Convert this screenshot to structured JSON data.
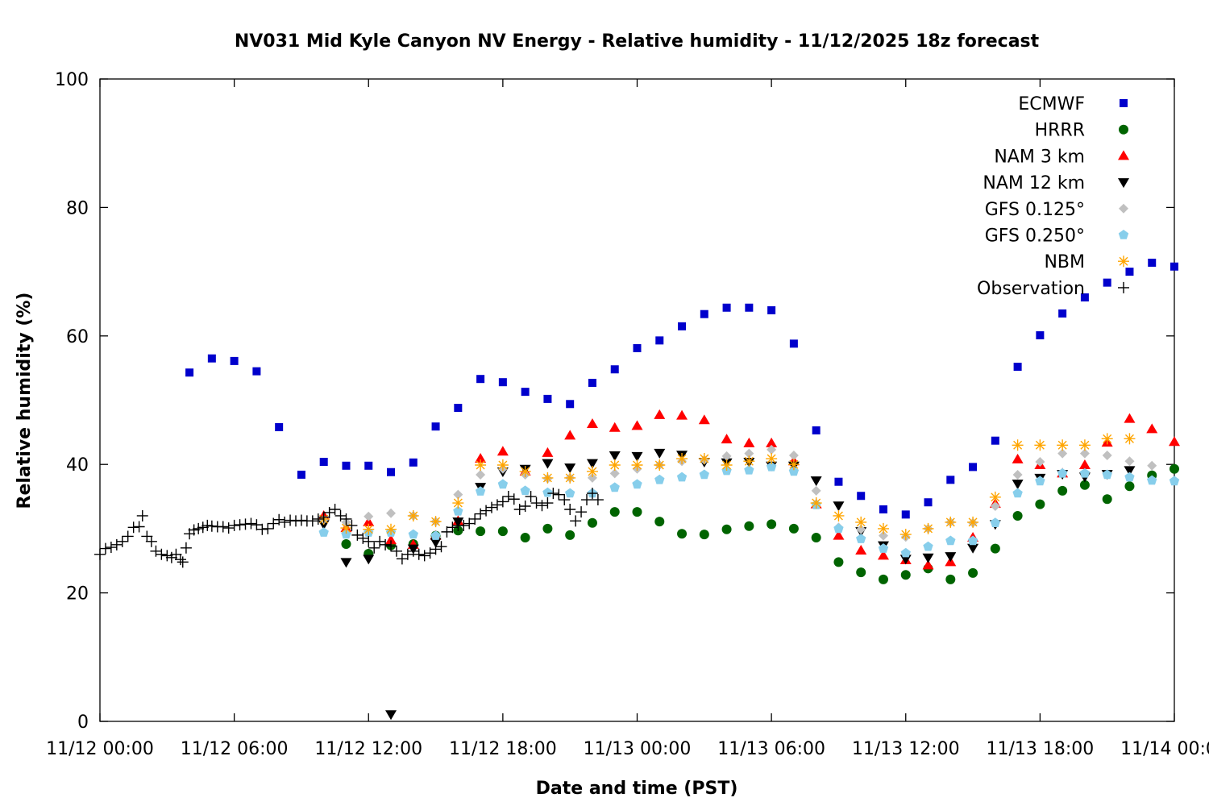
{
  "chart_data": {
    "type": "scatter",
    "title": "NV031 Mid Kyle Canyon NV Energy - Relative humidity - 11/12/2025 18z forecast",
    "xlabel": "Date and time (PST)",
    "ylabel": "Relative humidity (%)",
    "x_unit": "hours after 11/12 00:00 PST",
    "xlim": [
      0,
      48
    ],
    "ylim": [
      0,
      100
    ],
    "x_tick_labels": [
      "11/12 00:00",
      "11/12 06:00",
      "11/12 12:00",
      "11/12 18:00",
      "11/13 00:00",
      "11/13 06:00",
      "11/13 12:00",
      "11/13 18:00",
      "11/14 00:00"
    ],
    "y_tick_labels": [
      "0",
      "20",
      "40",
      "60",
      "80",
      "100"
    ],
    "grid": false,
    "legend_position": "top-right",
    "series": [
      {
        "name": "ECMWF",
        "marker": "square",
        "color": "#0000cc",
        "start_hour": 4,
        "values": [
          54.3,
          56.5,
          56.1,
          54.5,
          45.8,
          38.4,
          40.4,
          39.8,
          39.8,
          38.8,
          40.3,
          45.9,
          48.8,
          53.3,
          52.8,
          51.3,
          50.2,
          49.4,
          52.7,
          54.8,
          58.1,
          59.3,
          61.5,
          63.4,
          64.4,
          64.4,
          64.0,
          58.8,
          45.3,
          37.3,
          35.1,
          33.0,
          32.2,
          34.1,
          37.6,
          39.6,
          43.7,
          55.2,
          60.1,
          63.5,
          66.0,
          68.3,
          70.0,
          71.4,
          70.8
        ]
      },
      {
        "name": "HRRR",
        "marker": "circle",
        "color": "#006400",
        "start_hour": 11,
        "values": [
          27.6,
          26.1,
          27.4,
          27.6,
          28.9,
          29.7,
          29.6,
          29.6,
          28.6,
          30.0,
          29.0,
          30.9,
          32.6,
          32.6,
          31.1,
          29.2,
          29.1,
          29.9,
          30.4,
          30.7,
          30.0,
          28.6,
          24.8,
          23.2,
          22.1,
          22.8,
          23.8,
          22.1,
          23.1,
          26.9,
          32.0,
          33.8,
          35.9,
          36.8,
          34.6,
          36.6,
          38.3,
          39.3
        ]
      },
      {
        "name": "NAM 3 km",
        "marker": "triangle-up",
        "color": "#ff0000",
        "start_hour": 10,
        "values": [
          32.0,
          30.1,
          31.0,
          28.2,
          27.5,
          28.9,
          31.2,
          40.9,
          42.0,
          38.9,
          41.8,
          44.5,
          46.3,
          45.7,
          46.0,
          47.7,
          47.6,
          46.9,
          43.9,
          43.3,
          43.3,
          40.5,
          33.8,
          28.9,
          26.6,
          25.8,
          25.1,
          24.3,
          24.8,
          28.6,
          33.9,
          40.8,
          39.9,
          38.6,
          39.9,
          43.4,
          47.1,
          45.5,
          43.5
        ]
      },
      {
        "name": "NAM 12 km",
        "marker": "triangle-down",
        "color": "#000000",
        "start_hour": 10,
        "values": [
          30.7,
          24.8,
          25.3,
          1.1,
          26.9,
          27.9,
          31.1,
          36.5,
          38.9,
          39.3,
          40.2,
          39.5,
          40.2,
          41.4,
          41.3,
          41.8,
          41.5,
          40.4,
          40.3,
          40.4,
          39.8,
          39.8,
          37.5,
          33.6,
          29.6,
          27.4,
          25.3,
          25.5,
          25.7,
          27.0,
          30.7,
          37.0,
          37.9,
          38.5,
          38.1,
          38.5,
          39.1
        ]
      },
      {
        "name": "GFS 0.125°",
        "marker": "diamond",
        "color": "#c0c0c0",
        "start_hour": 10,
        "values": [
          31.4,
          31.0,
          31.9,
          32.4,
          32.0,
          31.1,
          35.3,
          38.4,
          39.3,
          38.4,
          37.8,
          37.9,
          37.9,
          38.6,
          39.3,
          39.9,
          40.5,
          40.7,
          41.3,
          41.7,
          42.3,
          41.4,
          35.9,
          30.2,
          29.9,
          28.9,
          28.7,
          30.0,
          31.0,
          30.9,
          33.5,
          38.4,
          40.4,
          41.7,
          41.7,
          41.4,
          40.5,
          39.8
        ]
      },
      {
        "name": "GFS 0.250°",
        "marker": "pentagon",
        "color": "#87ceeb",
        "start_hour": 10,
        "values": [
          29.4,
          29.1,
          29.4,
          29.4,
          29.1,
          28.9,
          32.7,
          35.8,
          36.9,
          35.9,
          35.6,
          35.5,
          35.5,
          36.4,
          36.9,
          37.6,
          38.0,
          38.4,
          39.0,
          39.1,
          39.6,
          38.9,
          33.7,
          30.0,
          28.4,
          26.9,
          26.2,
          27.2,
          28.1,
          28.1,
          30.9,
          35.5,
          37.4,
          38.6,
          38.6,
          38.4,
          38.0,
          37.5,
          37.4
        ]
      },
      {
        "name": "NBM",
        "marker": "asterisk",
        "color": "#ffa500",
        "start_hour": 10,
        "values": [
          31.5,
          30.1,
          29.9,
          29.9,
          32.0,
          31.1,
          34.0,
          39.9,
          39.9,
          38.9,
          37.9,
          37.9,
          38.9,
          39.9,
          39.9,
          39.9,
          40.9,
          40.9,
          39.9,
          40.5,
          40.9,
          40.0,
          34.0,
          32.0,
          31.0,
          30.0,
          29.1,
          30.0,
          31.0,
          31.0,
          34.9,
          43.0,
          43.0,
          43.0,
          43.0,
          44.0,
          44.0
        ]
      },
      {
        "name": "Observation",
        "marker": "plus",
        "color": "#000000",
        "points": [
          [
            0,
            26.0
          ],
          [
            0.25,
            26.9
          ],
          [
            0.5,
            27.1
          ],
          [
            0.75,
            27.5
          ],
          [
            1,
            28.0
          ],
          [
            1.25,
            28.8
          ],
          [
            1.5,
            30.2
          ],
          [
            1.75,
            30.3
          ],
          [
            1.9,
            32.0
          ],
          [
            2.1,
            28.8
          ],
          [
            2.3,
            28.0
          ],
          [
            2.5,
            26.5
          ],
          [
            2.75,
            26.0
          ],
          [
            3,
            25.8
          ],
          [
            3.2,
            25.5
          ],
          [
            3.4,
            26.0
          ],
          [
            3.6,
            25.2
          ],
          [
            3.7,
            24.8
          ],
          [
            3.85,
            27.0
          ],
          [
            4,
            29.2
          ],
          [
            4.2,
            29.8
          ],
          [
            4.4,
            30.0
          ],
          [
            4.6,
            30.2
          ],
          [
            4.8,
            30.5
          ],
          [
            5,
            30.4
          ],
          [
            5.25,
            30.3
          ],
          [
            5.5,
            30.3
          ],
          [
            5.75,
            30.1
          ],
          [
            6,
            30.5
          ],
          [
            6.25,
            30.6
          ],
          [
            6.5,
            30.7
          ],
          [
            6.75,
            30.8
          ],
          [
            7,
            30.6
          ],
          [
            7.25,
            29.9
          ],
          [
            7.5,
            30.0
          ],
          [
            7.75,
            30.8
          ],
          [
            8,
            31.4
          ],
          [
            8.25,
            31.0
          ],
          [
            8.5,
            31.3
          ],
          [
            8.75,
            31.2
          ],
          [
            9,
            31.3
          ],
          [
            9.25,
            31.2
          ],
          [
            9.5,
            31.2
          ],
          [
            9.75,
            31.5
          ],
          [
            10,
            31.8
          ],
          [
            10.25,
            32.5
          ],
          [
            10.5,
            33.0
          ],
          [
            10.75,
            32.0
          ],
          [
            11,
            31.5
          ],
          [
            11.25,
            30.5
          ],
          [
            11.5,
            29.0
          ],
          [
            11.75,
            28.5
          ],
          [
            12,
            28.0
          ],
          [
            12.25,
            27.0
          ],
          [
            12.5,
            28.0
          ],
          [
            12.75,
            27.5
          ],
          [
            13,
            27.3
          ],
          [
            13.25,
            26.5
          ],
          [
            13.5,
            25.3
          ],
          [
            13.75,
            26.0
          ],
          [
            14,
            26.5
          ],
          [
            14.25,
            26.0
          ],
          [
            14.5,
            25.8
          ],
          [
            14.75,
            26.2
          ],
          [
            15,
            26.8
          ],
          [
            15.25,
            27.2
          ],
          [
            15.5,
            29.5
          ],
          [
            15.75,
            30.2
          ],
          [
            16,
            30.5
          ],
          [
            16.25,
            30.5
          ],
          [
            16.5,
            30.8
          ],
          [
            16.75,
            31.5
          ],
          [
            17,
            32.3
          ],
          [
            17.25,
            32.8
          ],
          [
            17.5,
            33.3
          ],
          [
            17.75,
            33.7
          ],
          [
            18,
            34.2
          ],
          [
            18.25,
            35.0
          ],
          [
            18.5,
            34.6
          ],
          [
            18.75,
            33.0
          ],
          [
            19,
            33.5
          ],
          [
            19.25,
            35.0
          ],
          [
            19.5,
            34.0
          ],
          [
            19.75,
            33.6
          ],
          [
            20,
            34.0
          ],
          [
            20.25,
            35.5
          ],
          [
            20.5,
            35.3
          ],
          [
            20.75,
            34.5
          ],
          [
            21,
            33.0
          ],
          [
            21.25,
            31.2
          ],
          [
            21.5,
            32.6
          ],
          [
            21.75,
            34.5
          ],
          [
            22,
            35.5
          ],
          [
            22.25,
            34.5
          ]
        ]
      }
    ]
  }
}
